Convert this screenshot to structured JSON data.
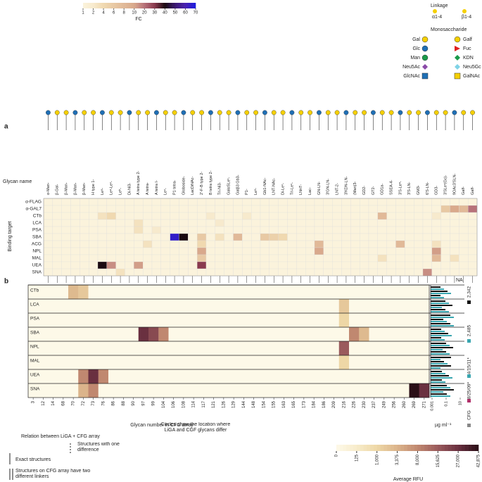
{
  "fc_scale": {
    "label": "FC",
    "ticks": [
      1,
      2,
      4,
      6,
      8,
      10,
      20,
      30,
      40,
      50,
      60,
      70
    ],
    "stops": [
      {
        "value": 1,
        "color": "#fbf3dc"
      },
      {
        "value": 4,
        "color": "#f0d9b0"
      },
      {
        "value": 10,
        "color": "#d9a98c"
      },
      {
        "value": 20,
        "color": "#b7727a"
      },
      {
        "value": 30,
        "color": "#8a3a4e"
      },
      {
        "value": 40,
        "color": "#1a0a10"
      },
      {
        "value": 50,
        "color": "#3b1870"
      },
      {
        "value": 60,
        "color": "#4a22b0"
      },
      {
        "value": 70,
        "color": "#1a1ae0"
      }
    ]
  },
  "legend": {
    "linkage_title": "Linkage",
    "linkages": [
      "α1-4",
      "β1-4"
    ],
    "monosaccharide_title": "Monosaccharide",
    "monosaccharides": [
      "Gal",
      "Galf",
      "Glc",
      "Fuc",
      "Man",
      "KDN",
      "Neu5Ac",
      "Neu5Gc",
      "GlcNAc",
      "GalNAc"
    ]
  },
  "panel_a": {
    "label": "a",
    "glycan_name_label": "Glycan name",
    "binding_target_label": "Binding target",
    "na": "NA",
    "glycans": [
      "α-Man-",
      "β-Gal-",
      "β-Man-",
      "β-Man-",
      "β-Man-",
      "H type 1-",
      "Leᵃ-",
      "Leᵃ-Leˣ-",
      "Leᵇ-",
      "Di-Ni3-",
      "A tetra type 2-",
      "A tetra-",
      "A tetra I-",
      "Leˣ-",
      "P1 tetra-",
      "Globoside-",
      "LacDiNAc-",
      "2'-F-B type 2-",
      "B tetra type 2-",
      "Tri-Ni3-",
      "GalαSLeˣ-",
      "Galβ3 Gb3-",
      "P1-",
      "Leᵃ-",
      "Gb1-NAc-",
      "LNT-NAc-",
      "Di-Leˣ-",
      "Tri-Leˣ-",
      "LNnT-",
      "Lac-",
      "GN-LN-",
      "3'GN-LN-",
      "LNT-2-",
      "3'KDN-LN-",
      "(Man)3-",
      "GD2-",
      "GT2-",
      "GD1a-",
      "SSEA-4-",
      "3'S-Leᵃ-",
      "3'S-LN-",
      "GM3-",
      "6'S-LN-",
      "GD3-",
      "3'SLeˣ(Gc)-",
      "9OAc3'SLN-",
      "Galf-",
      "Galf-"
    ],
    "targets": [
      "α-FLAG",
      "α-GAL7",
      "CTb",
      "LCA",
      "PSA",
      "SBA",
      "ACG",
      "NPL",
      "MAL",
      "UEA",
      "SNA"
    ],
    "fc": [
      [
        1,
        1,
        1,
        1,
        1,
        1,
        1,
        1,
        1,
        1,
        1,
        1,
        1,
        1,
        1,
        1,
        1,
        1,
        1,
        1,
        1,
        1,
        1,
        1,
        1,
        1,
        1,
        1,
        1,
        1,
        1,
        1,
        1,
        1,
        1,
        1,
        1,
        1,
        1,
        1,
        1,
        1,
        1,
        1,
        1,
        1,
        1,
        1
      ],
      [
        1,
        1,
        1,
        1,
        1,
        1,
        1,
        1,
        1,
        1,
        1,
        1,
        1,
        1,
        1,
        1,
        1,
        1,
        1,
        1,
        1,
        1,
        1,
        1,
        1,
        1,
        1,
        1,
        1,
        1,
        1,
        1,
        1,
        1,
        1,
        1,
        1,
        1,
        1,
        1,
        1,
        1,
        1,
        1,
        6,
        10,
        8,
        20
      ],
      [
        1,
        1,
        1,
        1,
        1,
        1,
        3,
        4,
        1,
        1,
        1,
        1,
        1,
        1,
        1,
        1,
        1,
        1,
        2,
        1,
        1,
        1,
        2,
        1,
        1,
        1,
        1,
        1,
        1,
        1,
        1,
        1,
        1,
        1,
        1,
        1,
        1,
        8,
        1,
        1,
        1,
        1,
        1,
        2,
        1,
        1,
        1,
        1
      ],
      [
        1,
        1,
        1,
        1,
        1,
        1,
        1,
        1,
        1,
        1,
        3,
        1,
        1,
        1,
        1,
        1,
        1,
        1,
        1,
        2,
        1,
        1,
        1,
        1,
        1,
        1,
        1,
        1,
        1,
        1,
        1,
        1,
        1,
        1,
        1,
        1,
        1,
        1,
        1,
        1,
        1,
        1,
        1,
        1,
        1,
        1,
        1,
        1
      ],
      [
        1,
        1,
        1,
        1,
        1,
        1,
        1,
        1,
        1,
        1,
        3,
        1,
        2,
        1,
        1,
        1,
        1,
        1,
        1,
        1,
        1,
        1,
        1,
        1,
        1,
        1,
        1,
        1,
        1,
        1,
        1,
        1,
        1,
        1,
        1,
        1,
        1,
        1,
        1,
        1,
        1,
        1,
        1,
        1,
        1,
        1,
        1,
        1
      ],
      [
        1,
        1,
        1,
        1,
        1,
        1,
        1,
        1,
        1,
        1,
        1,
        1,
        1,
        1,
        65,
        40,
        1,
        6,
        1,
        3,
        1,
        8,
        1,
        1,
        6,
        5,
        4,
        1,
        1,
        1,
        1,
        1,
        1,
        1,
        1,
        1,
        1,
        1,
        1,
        1,
        1,
        1,
        1,
        1,
        1,
        1,
        1,
        1
      ],
      [
        1,
        1,
        1,
        1,
        1,
        1,
        1,
        1,
        1,
        1,
        1,
        3,
        1,
        1,
        1,
        1,
        1,
        4,
        1,
        1,
        1,
        1,
        1,
        1,
        1,
        1,
        1,
        1,
        1,
        1,
        8,
        1,
        1,
        1,
        1,
        1,
        1,
        1,
        1,
        8,
        1,
        1,
        1,
        3,
        1,
        1,
        1,
        1
      ],
      [
        1,
        1,
        1,
        1,
        1,
        1,
        1,
        1,
        1,
        1,
        1,
        1,
        1,
        1,
        1,
        1,
        1,
        10,
        1,
        1,
        1,
        1,
        1,
        1,
        1,
        1,
        1,
        1,
        1,
        1,
        10,
        1,
        1,
        1,
        1,
        1,
        1,
        1,
        1,
        1,
        1,
        1,
        1,
        12,
        1,
        1,
        1,
        1
      ],
      [
        1,
        1,
        1,
        1,
        1,
        1,
        1,
        1,
        1,
        1,
        1,
        1,
        1,
        1,
        1,
        1,
        1,
        6,
        1,
        1,
        1,
        1,
        1,
        1,
        1,
        1,
        1,
        1,
        1,
        1,
        1,
        1,
        1,
        1,
        1,
        1,
        1,
        3,
        1,
        1,
        1,
        1,
        1,
        8,
        1,
        3,
        1,
        1
      ],
      [
        1,
        1,
        1,
        1,
        1,
        1,
        40,
        15,
        1,
        1,
        12,
        1,
        1,
        1,
        1,
        1,
        1,
        30,
        1,
        1,
        1,
        1,
        1,
        1,
        1,
        1,
        1,
        1,
        1,
        1,
        1,
        1,
        1,
        1,
        1,
        1,
        1,
        1,
        1,
        1,
        1,
        1,
        1,
        1,
        1,
        1,
        1,
        1
      ],
      [
        1,
        1,
        1,
        1,
        1,
        1,
        1,
        1,
        3,
        1,
        1,
        1,
        1,
        1,
        1,
        1,
        1,
        1,
        1,
        1,
        1,
        1,
        1,
        1,
        1,
        1,
        1,
        1,
        1,
        1,
        1,
        1,
        1,
        1,
        1,
        1,
        1,
        1,
        1,
        1,
        1,
        1,
        15,
        1,
        1,
        1,
        1,
        1
      ]
    ]
  },
  "panel_b": {
    "label": "b",
    "x_label": "Glycan number in CFG array",
    "unit": "µg ml⁻¹",
    "unit_ticks": [
      0.001,
      0.1,
      10
    ],
    "lot_labels": [
      "2,342",
      "2,485",
      "4/15/11*",
      "8/25/09*",
      "CFG"
    ],
    "rows": [
      "CTb",
      "LCA",
      "PSA",
      "SBA",
      "NPL",
      "MAL",
      "UEA",
      "SNA"
    ],
    "cfg_numbers": [
      3,
      12,
      14,
      68,
      70,
      72,
      73,
      76,
      86,
      88,
      90,
      97,
      99,
      104,
      106,
      108,
      114,
      117,
      121,
      126,
      129,
      144,
      148,
      154,
      155,
      163,
      165,
      173,
      184,
      186,
      209,
      216,
      226,
      230,
      237,
      249,
      256,
      260,
      269,
      271
    ],
    "rfu": [
      [
        0,
        0,
        0,
        0,
        3000,
        2000,
        0,
        0,
        0,
        0,
        0,
        0,
        0,
        0,
        0,
        0,
        0,
        0,
        0,
        0,
        0,
        0,
        0,
        0,
        0,
        0,
        0,
        0,
        0,
        0,
        0,
        0,
        0,
        0,
        0,
        0,
        0,
        0,
        0,
        0
      ],
      [
        0,
        0,
        0,
        0,
        0,
        0,
        0,
        0,
        0,
        0,
        0,
        0,
        0,
        0,
        0,
        0,
        0,
        0,
        0,
        0,
        0,
        0,
        0,
        0,
        0,
        0,
        0,
        0,
        0,
        0,
        0,
        2000,
        0,
        0,
        0,
        0,
        0,
        0,
        0,
        0
      ],
      [
        0,
        0,
        0,
        0,
        0,
        0,
        0,
        0,
        0,
        0,
        0,
        0,
        0,
        0,
        0,
        0,
        0,
        0,
        0,
        0,
        0,
        0,
        0,
        0,
        0,
        0,
        0,
        0,
        0,
        0,
        0,
        1000,
        0,
        0,
        0,
        0,
        0,
        0,
        0,
        0
      ],
      [
        0,
        0,
        0,
        0,
        0,
        0,
        0,
        0,
        0,
        0,
        0,
        27000,
        20000,
        8000,
        0,
        0,
        0,
        0,
        0,
        0,
        0,
        0,
        0,
        0,
        0,
        0,
        0,
        0,
        0,
        0,
        0,
        0,
        8000,
        3000,
        0,
        0,
        0,
        0,
        0,
        0
      ],
      [
        0,
        0,
        0,
        0,
        0,
        0,
        0,
        0,
        0,
        0,
        0,
        0,
        0,
        0,
        0,
        0,
        0,
        0,
        0,
        0,
        0,
        0,
        0,
        0,
        0,
        0,
        0,
        0,
        0,
        0,
        0,
        15625,
        0,
        0,
        0,
        0,
        0,
        0,
        0,
        0
      ],
      [
        0,
        0,
        0,
        0,
        0,
        0,
        0,
        0,
        0,
        0,
        0,
        0,
        0,
        0,
        0,
        0,
        0,
        0,
        0,
        0,
        0,
        0,
        0,
        0,
        0,
        0,
        0,
        0,
        0,
        0,
        0,
        1000,
        0,
        0,
        0,
        0,
        0,
        0,
        0,
        0
      ],
      [
        0,
        0,
        0,
        0,
        0,
        8000,
        27000,
        8000,
        0,
        0,
        0,
        0,
        0,
        0,
        0,
        0,
        0,
        0,
        0,
        0,
        0,
        0,
        0,
        0,
        0,
        0,
        0,
        0,
        0,
        0,
        0,
        0,
        0,
        0,
        0,
        0,
        0,
        0,
        0,
        0
      ],
      [
        0,
        0,
        0,
        0,
        0,
        3375,
        8000,
        0,
        0,
        0,
        0,
        0,
        0,
        0,
        0,
        0,
        0,
        0,
        0,
        0,
        0,
        0,
        0,
        0,
        0,
        0,
        0,
        0,
        0,
        0,
        0,
        0,
        0,
        0,
        0,
        0,
        0,
        0,
        42875,
        27000
      ]
    ]
  },
  "rfu_scale": {
    "label": "Average RFU",
    "ticks": [
      0,
      125,
      {
        "value": 1000,
        "label": "1,000"
      },
      {
        "value": 3375,
        "label": "3,375"
      },
      {
        "value": 8000,
        "label": "8,000"
      },
      {
        "value": 15625,
        "label": "15,625"
      },
      {
        "value": 27000,
        "label": "27,000"
      },
      {
        "value": 42875,
        "label": "42,875"
      }
    ],
    "stops": [
      {
        "value": 0,
        "color": "#fdf9e8"
      },
      {
        "value": 125,
        "color": "#f7ecca"
      },
      {
        "value": 1000,
        "color": "#eed7a6"
      },
      {
        "value": 3375,
        "color": "#dbb48b"
      },
      {
        "value": 8000,
        "color": "#c08870"
      },
      {
        "value": 15625,
        "color": "#9a5a5c"
      },
      {
        "value": 27000,
        "color": "#6a3040"
      },
      {
        "value": 42875,
        "color": "#2a0f17"
      }
    ]
  },
  "notes": {
    "relation": "Relation between LiGA + CFG array",
    "exact": "Exact structures",
    "one_difference": "Structures with one difference",
    "two_linkers": "Structures on CFG array have two different linkers",
    "circles": "Circles show the location where LiGA and CGF glycans differ"
  }
}
